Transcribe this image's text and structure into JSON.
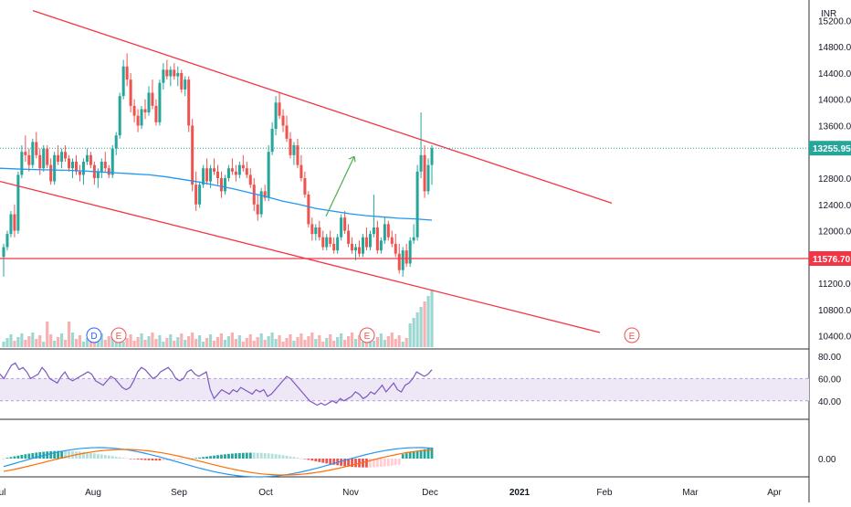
{
  "currency_label": "INR",
  "colors": {
    "up": "#26a69a",
    "down": "#ef5350",
    "ma": "#2196f3",
    "trendline": "#f23645",
    "support": "#f23645",
    "current_price": "#26a69a",
    "rsi_line": "#7e57c2",
    "rsi_band": "#ede7f6",
    "macd_line": "#2196f3",
    "signal_line": "#ff6d00",
    "arrow": "#4caf50"
  },
  "price_axis": {
    "ticks": [
      "15200.00",
      "14800.00",
      "14400.00",
      "14000.00",
      "13600.00",
      "12800.00",
      "12400.00",
      "12000.00",
      "11200.00",
      "10800.00",
      "10400.00"
    ],
    "current_price_label": "13255.95",
    "support_label": "11576.70"
  },
  "rsi_axis": {
    "ticks": [
      "80.00",
      "60.00",
      "40.00"
    ]
  },
  "macd_axis": {
    "ticks": [
      "0.00"
    ]
  },
  "time_axis": [
    "Jul",
    "Aug",
    "Sep",
    "Oct",
    "Nov",
    "Dec",
    "2021",
    "Feb",
    "Mar",
    "Apr"
  ],
  "event_markers": [
    "D",
    "E",
    "E",
    "E"
  ],
  "chart_data": {
    "type": "candlestick",
    "symbol_currency": "INR",
    "y_range": [
      10200,
      15400
    ],
    "current_price": 13255.95,
    "support_level": 11576.7,
    "x_labels": [
      "Jul",
      "Aug",
      "Sep",
      "Oct",
      "Nov",
      "Dec",
      "2021",
      "Feb",
      "Mar",
      "Apr"
    ],
    "ohlc": [
      [
        11600,
        11800,
        11300,
        11750
      ],
      [
        11750,
        12000,
        11700,
        11950
      ],
      [
        11950,
        12300,
        11900,
        12250
      ],
      [
        12250,
        12400,
        11900,
        12000
      ],
      [
        12000,
        12900,
        11950,
        12850
      ],
      [
        12850,
        13300,
        12800,
        13200
      ],
      [
        13200,
        13450,
        13050,
        13150
      ],
      [
        13150,
        13250,
        12900,
        13000
      ],
      [
        13000,
        13400,
        12950,
        13350
      ],
      [
        13350,
        13500,
        13100,
        13150
      ],
      [
        13150,
        13250,
        12850,
        12950
      ],
      [
        12950,
        13300,
        12900,
        13250
      ],
      [
        13250,
        13300,
        12950,
        13000
      ],
      [
        13000,
        13100,
        12700,
        12750
      ],
      [
        12750,
        13200,
        12700,
        13150
      ],
      [
        13150,
        13300,
        13000,
        13050
      ],
      [
        13050,
        13250,
        12950,
        13200
      ],
      [
        13200,
        13300,
        13050,
        13100
      ],
      [
        13100,
        13150,
        12900,
        12950
      ],
      [
        12950,
        13100,
        12800,
        13050
      ],
      [
        13050,
        13150,
        12850,
        12900
      ],
      [
        12900,
        13000,
        12750,
        12850
      ],
      [
        12850,
        13100,
        12700,
        13050
      ],
      [
        13050,
        13250,
        13000,
        13150
      ],
      [
        13150,
        13200,
        12950,
        13000
      ],
      [
        13000,
        13050,
        12700,
        12800
      ],
      [
        12800,
        12950,
        12650,
        12900
      ],
      [
        12900,
        13100,
        12800,
        13050
      ],
      [
        13050,
        13200,
        12900,
        12950
      ],
      [
        12950,
        13000,
        12800,
        12850
      ],
      [
        12850,
        13300,
        12800,
        13250
      ],
      [
        13250,
        13500,
        13150,
        13450
      ],
      [
        13450,
        14100,
        13400,
        14050
      ],
      [
        14050,
        14600,
        14000,
        14500
      ],
      [
        14500,
        14700,
        14200,
        14300
      ],
      [
        14300,
        14400,
        13800,
        13900
      ],
      [
        13900,
        14000,
        13650,
        13750
      ],
      [
        13750,
        13850,
        13500,
        13600
      ],
      [
        13600,
        13900,
        13550,
        13850
      ],
      [
        13850,
        14000,
        13700,
        13800
      ],
      [
        13800,
        14200,
        13750,
        14100
      ],
      [
        14100,
        14300,
        13850,
        13900
      ],
      [
        13900,
        14000,
        13600,
        13650
      ],
      [
        13650,
        14300,
        13600,
        14250
      ],
      [
        14250,
        14550,
        14150,
        14450
      ],
      [
        14450,
        14600,
        14300,
        14350
      ],
      [
        14350,
        14500,
        14200,
        14450
      ],
      [
        14450,
        14550,
        14300,
        14350
      ],
      [
        14350,
        14500,
        14200,
        14400
      ],
      [
        14400,
        14450,
        14100,
        14150
      ],
      [
        14150,
        14350,
        14050,
        14300
      ],
      [
        14300,
        14350,
        13500,
        13600
      ],
      [
        13600,
        13700,
        12600,
        12700
      ],
      [
        12700,
        12900,
        12300,
        12400
      ],
      [
        12400,
        12750,
        12350,
        12700
      ],
      [
        12700,
        13000,
        12650,
        12950
      ],
      [
        12950,
        13100,
        12700,
        12750
      ],
      [
        12750,
        13000,
        12650,
        12950
      ],
      [
        12950,
        13100,
        12850,
        12900
      ],
      [
        12900,
        13000,
        12700,
        12800
      ],
      [
        12800,
        12900,
        12500,
        12600
      ],
      [
        12600,
        12850,
        12550,
        12800
      ],
      [
        12800,
        13000,
        12750,
        12950
      ],
      [
        12950,
        13100,
        12850,
        12900
      ],
      [
        12900,
        13000,
        12750,
        12850
      ],
      [
        12850,
        13050,
        12800,
        13000
      ],
      [
        13000,
        13150,
        12900,
        12950
      ],
      [
        12950,
        13050,
        12800,
        12850
      ],
      [
        12850,
        12950,
        12650,
        12700
      ],
      [
        12700,
        12800,
        12300,
        12400
      ],
      [
        12400,
        12550,
        12150,
        12250
      ],
      [
        12250,
        12650,
        12200,
        12600
      ],
      [
        12600,
        12700,
        12450,
        12500
      ],
      [
        12500,
        13300,
        12450,
        13200
      ],
      [
        13200,
        13650,
        13150,
        13550
      ],
      [
        13550,
        14050,
        13450,
        13950
      ],
      [
        13950,
        14100,
        13700,
        13750
      ],
      [
        13750,
        13850,
        13500,
        13600
      ],
      [
        13600,
        13750,
        13350,
        13400
      ],
      [
        13400,
        13500,
        13100,
        13150
      ],
      [
        13150,
        13350,
        13000,
        13300
      ],
      [
        13300,
        13400,
        12950,
        13000
      ],
      [
        13000,
        13150,
        12750,
        12800
      ],
      [
        12800,
        12900,
        12500,
        12550
      ],
      [
        12550,
        12600,
        12050,
        12100
      ],
      [
        12100,
        12200,
        11850,
        11950
      ],
      [
        11950,
        12100,
        11850,
        12050
      ],
      [
        12050,
        12150,
        11850,
        11900
      ],
      [
        11900,
        12000,
        11700,
        11750
      ],
      [
        11750,
        11950,
        11700,
        11900
      ],
      [
        11900,
        12000,
        11750,
        11800
      ],
      [
        11800,
        11900,
        11650,
        11700
      ],
      [
        11700,
        11950,
        11650,
        11900
      ],
      [
        11900,
        12250,
        11850,
        12200
      ],
      [
        12200,
        12300,
        11950,
        12000
      ],
      [
        12000,
        12100,
        11750,
        11800
      ],
      [
        11800,
        11900,
        11650,
        11700
      ],
      [
        11700,
        11800,
        11550,
        11750
      ],
      [
        11750,
        11850,
        11600,
        11650
      ],
      [
        11650,
        11950,
        11600,
        11900
      ],
      [
        11900,
        12050,
        11700,
        11750
      ],
      [
        11750,
        12000,
        11700,
        11950
      ],
      [
        11950,
        12550,
        11900,
        12050
      ],
      [
        12050,
        12150,
        11650,
        11700
      ],
      [
        11700,
        11900,
        11650,
        11850
      ],
      [
        11850,
        12200,
        11800,
        12100
      ],
      [
        12100,
        12150,
        11850,
        11900
      ],
      [
        11900,
        12000,
        11750,
        11800
      ],
      [
        11800,
        11950,
        11600,
        11650
      ],
      [
        11650,
        11800,
        11350,
        11400
      ],
      [
        11400,
        11750,
        11300,
        11700
      ],
      [
        11700,
        11800,
        11450,
        11500
      ],
      [
        11500,
        11900,
        11450,
        11850
      ],
      [
        11850,
        12100,
        11800,
        11900
      ],
      [
        11900,
        13000,
        11850,
        12900
      ],
      [
        12900,
        13800,
        12800,
        13150
      ],
      [
        13150,
        13300,
        12500,
        12600
      ],
      [
        12600,
        13100,
        12550,
        13000
      ],
      [
        13000,
        13300,
        12700,
        13255.95
      ]
    ],
    "moving_average": {
      "name": "",
      "x_start_index": 0,
      "values": [
        12950,
        12940,
        12930,
        12925,
        12920,
        12910,
        12895,
        12880,
        12865,
        12850,
        12820,
        12780,
        12740,
        12690,
        12640,
        12580,
        12520,
        12450,
        12400,
        12340,
        12300,
        12260,
        12230,
        12210,
        12190,
        12180,
        12160
      ]
    },
    "trendlines": [
      {
        "from": [
          "2020-06-20",
          15350
        ],
        "to": [
          "2021-01-15",
          12420
        ]
      },
      {
        "from": [
          "2020-06-25",
          12750
        ],
        "to": [
          "2021-01-10",
          10450
        ]
      }
    ],
    "annotations": [
      "green up arrow near 12200 to 13150 in early November"
    ],
    "volume": {
      "relative": "bars below price, spike in late November"
    },
    "rsi": {
      "ticks": [
        80,
        60,
        40
      ],
      "band": [
        40,
        60
      ],
      "values": [
        64,
        60,
        66,
        72,
        74,
        68,
        70,
        66,
        60,
        62,
        64,
        70,
        66,
        60,
        58,
        56,
        62,
        66,
        60,
        58,
        60,
        62,
        64,
        66,
        64,
        58,
        56,
        54,
        58,
        62,
        60,
        56,
        52,
        50,
        52,
        58,
        66,
        70,
        68,
        64,
        60,
        62,
        66,
        68,
        70,
        66,
        60,
        58,
        60,
        66,
        68,
        64,
        62,
        64,
        66,
        50,
        42,
        46,
        50,
        48,
        46,
        50,
        48,
        52,
        50,
        48,
        46,
        50,
        48,
        50,
        44,
        46,
        50,
        54,
        58,
        62,
        60,
        56,
        52,
        48,
        44,
        40,
        38,
        36,
        38,
        36,
        38,
        40,
        38,
        42,
        40,
        42,
        44,
        48,
        46,
        42,
        44,
        48,
        46,
        50,
        54,
        48,
        52,
        56,
        50,
        48,
        54,
        56,
        60,
        66,
        64,
        62,
        64,
        68
      ]
    },
    "macd": {
      "zero_label": "0.00"
    }
  }
}
